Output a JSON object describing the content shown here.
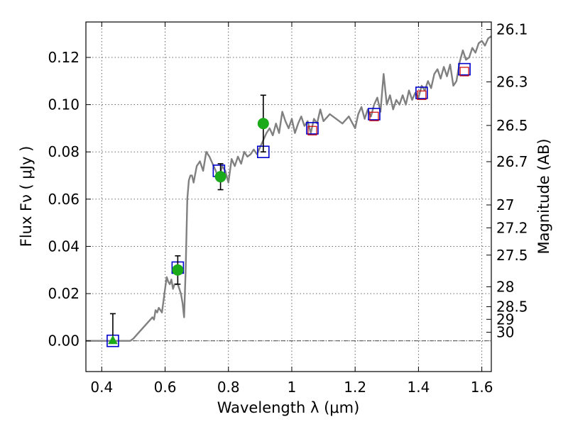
{
  "chart_data": {
    "type": "scatter",
    "xlabel": "Wavelength  λ (μm)",
    "ylabel": "Flux  Fν ( μJy )",
    "y2label": "Magnitude (AB)",
    "xlim": [
      0.35,
      1.63
    ],
    "ylim": [
      -0.013,
      0.135
    ],
    "grid": true,
    "x_ticks": [
      {
        "value": 0.4,
        "label": "0.4"
      },
      {
        "value": 0.6,
        "label": "0.6"
      },
      {
        "value": 0.8,
        "label": "0.8"
      },
      {
        "value": 1.0,
        "label": "1"
      },
      {
        "value": 1.2,
        "label": "1.2"
      },
      {
        "value": 1.4,
        "label": "1.4"
      },
      {
        "value": 1.6,
        "label": "1.6"
      }
    ],
    "y_ticks": [
      {
        "value": 0.0,
        "label": "0.00"
      },
      {
        "value": 0.02,
        "label": "0.02"
      },
      {
        "value": 0.04,
        "label": "0.04"
      },
      {
        "value": 0.06,
        "label": "0.06"
      },
      {
        "value": 0.08,
        "label": "0.08"
      },
      {
        "value": 0.1,
        "label": "0.10"
      },
      {
        "value": 0.12,
        "label": "0.12"
      }
    ],
    "y2_ticks": [
      {
        "mag": 26.1,
        "label": "26.1"
      },
      {
        "mag": 26.3,
        "label": "26.3"
      },
      {
        "mag": 26.5,
        "label": "26.5"
      },
      {
        "mag": 26.7,
        "label": "26.7"
      },
      {
        "mag": 27.0,
        "label": "27"
      },
      {
        "mag": 27.2,
        "label": "27.2"
      },
      {
        "mag": 27.5,
        "label": "27.5"
      },
      {
        "mag": 28.0,
        "label": "28"
      },
      {
        "mag": 28.5,
        "label": "28.5"
      },
      {
        "mag": 29.0,
        "label": "29"
      },
      {
        "mag": 30.0,
        "label": "30"
      }
    ],
    "series": [
      {
        "kind": "line",
        "color": "#808080",
        "x": [
          0.35,
          0.49,
          0.5,
          0.52,
          0.54,
          0.56,
          0.565,
          0.57,
          0.575,
          0.58,
          0.59,
          0.6,
          0.605,
          0.61,
          0.615,
          0.62,
          0.625,
          0.63,
          0.64,
          0.65,
          0.655,
          0.66,
          0.665,
          0.67,
          0.675,
          0.68,
          0.685,
          0.69,
          0.7,
          0.71,
          0.72,
          0.73,
          0.74,
          0.75,
          0.76,
          0.77,
          0.78,
          0.79,
          0.8,
          0.81,
          0.82,
          0.83,
          0.84,
          0.85,
          0.86,
          0.87,
          0.88,
          0.89,
          0.9,
          0.91,
          0.92,
          0.93,
          0.94,
          0.95,
          0.96,
          0.97,
          0.98,
          0.99,
          1.0,
          1.01,
          1.02,
          1.03,
          1.04,
          1.05,
          1.06,
          1.07,
          1.08,
          1.09,
          1.1,
          1.12,
          1.14,
          1.16,
          1.18,
          1.2,
          1.21,
          1.22,
          1.23,
          1.24,
          1.25,
          1.26,
          1.27,
          1.28,
          1.29,
          1.3,
          1.31,
          1.32,
          1.33,
          1.34,
          1.35,
          1.36,
          1.37,
          1.38,
          1.39,
          1.4,
          1.41,
          1.42,
          1.43,
          1.44,
          1.45,
          1.46,
          1.47,
          1.48,
          1.49,
          1.5,
          1.51,
          1.52,
          1.53,
          1.54,
          1.55,
          1.56,
          1.57,
          1.58,
          1.59,
          1.6,
          1.61,
          1.62,
          1.63
        ],
        "y": [
          0.0,
          0.0,
          0.001,
          0.004,
          0.007,
          0.01,
          0.009,
          0.013,
          0.012,
          0.014,
          0.012,
          0.022,
          0.027,
          0.025,
          0.024,
          0.026,
          0.022,
          0.024,
          0.024,
          0.02,
          0.016,
          0.01,
          0.03,
          0.06,
          0.068,
          0.07,
          0.07,
          0.067,
          0.074,
          0.076,
          0.072,
          0.08,
          0.078,
          0.075,
          0.072,
          0.068,
          0.074,
          0.072,
          0.067,
          0.077,
          0.074,
          0.078,
          0.075,
          0.08,
          0.078,
          0.079,
          0.081,
          0.079,
          0.082,
          0.085,
          0.088,
          0.09,
          0.087,
          0.092,
          0.088,
          0.097,
          0.093,
          0.09,
          0.094,
          0.088,
          0.092,
          0.095,
          0.091,
          0.093,
          0.088,
          0.094,
          0.092,
          0.098,
          0.093,
          0.096,
          0.094,
          0.092,
          0.095,
          0.09,
          0.096,
          0.099,
          0.094,
          0.098,
          0.095,
          0.1,
          0.103,
          0.097,
          0.113,
          0.1,
          0.104,
          0.098,
          0.102,
          0.1,
          0.104,
          0.1,
          0.106,
          0.102,
          0.105,
          0.103,
          0.108,
          0.106,
          0.11,
          0.107,
          0.113,
          0.115,
          0.111,
          0.116,
          0.112,
          0.117,
          0.108,
          0.11,
          0.118,
          0.123,
          0.119,
          0.12,
          0.124,
          0.122,
          0.126,
          0.127,
          0.125,
          0.128,
          0.129
        ]
      },
      {
        "kind": "markers",
        "marker": "square",
        "edge": "#0000cc",
        "x": [
          0.435,
          0.64,
          0.77,
          0.91,
          1.065,
          1.26,
          1.41,
          1.545
        ],
        "y": [
          0.0,
          0.031,
          0.072,
          0.08,
          0.09,
          0.096,
          0.105,
          0.115
        ]
      },
      {
        "kind": "markers",
        "marker": "small-square",
        "edge": "#cc0000",
        "x": [
          1.065,
          1.26,
          1.41,
          1.545
        ],
        "y": [
          0.089,
          0.095,
          0.104,
          0.114
        ]
      },
      {
        "kind": "errorbar",
        "marker": "circle",
        "color": "#1aaa1a",
        "x": [
          0.64,
          0.775,
          0.91
        ],
        "y": [
          0.03,
          0.0695,
          0.092
        ],
        "yerr": [
          0.006,
          0.0055,
          0.012
        ]
      },
      {
        "kind": "errorbar",
        "marker": "triangle",
        "color": "#1aaa1a",
        "x": [
          0.435
        ],
        "y": [
          0.0
        ],
        "yerr_upper": [
          0.0115
        ],
        "yerr_lower": [
          0.0
        ]
      }
    ]
  }
}
